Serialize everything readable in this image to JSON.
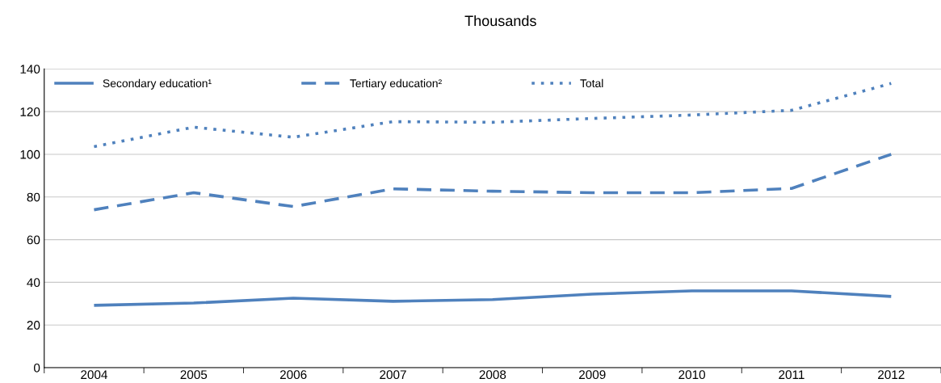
{
  "chart_data": {
    "type": "line",
    "title": "Thousands",
    "categories": [
      "2004",
      "2005",
      "2006",
      "2007",
      "2008",
      "2009",
      "2010",
      "2011",
      "2012"
    ],
    "series": [
      {
        "name": "Secondary education¹",
        "color": "#4f81bd",
        "line_style": "solid",
        "values": [
          29.2,
          30.3,
          32.6,
          31.1,
          31.9,
          34.5,
          36,
          36,
          33.4
        ]
      },
      {
        "name": "Tertiary education²",
        "color": "#4f81bd",
        "line_style": "dashed",
        "values": [
          74,
          82,
          75.5,
          83.8,
          82.7,
          82,
          82,
          84,
          100
        ]
      },
      {
        "name": "Total",
        "color": "#4f81bd",
        "line_style": "dotted",
        "values": [
          103.6,
          112.7,
          108,
          115.3,
          115,
          116.8,
          118.4,
          120.6,
          133.2
        ]
      }
    ],
    "ylim": [
      0,
      140
    ],
    "yticks": [
      0,
      20,
      40,
      60,
      80,
      100,
      120,
      140
    ],
    "grid": "y",
    "legend": "top left",
    "marker": "none"
  }
}
